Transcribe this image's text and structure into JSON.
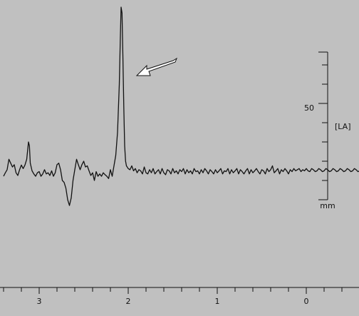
{
  "chart_data": {
    "type": "line",
    "title": "",
    "xlabel": "",
    "ylabel": "",
    "x_ticks": [
      3,
      2,
      1,
      0
    ],
    "x_tick_labels": [
      "3",
      "2",
      "1",
      "0"
    ],
    "x_range": [
      3.4,
      -0.6
    ],
    "y_scale": {
      "label": "[LA]",
      "tick_label": "50",
      "tick_value": 50,
      "unit": "mm",
      "range": [
        0,
        100
      ]
    },
    "series": [
      {
        "name": "",
        "points": [
          [
            3.4,
            12.2
          ],
          [
            3.38,
            14.0
          ],
          [
            3.36,
            15.6
          ],
          [
            3.34,
            21.0
          ],
          [
            3.32,
            19.0
          ],
          [
            3.3,
            17.0
          ],
          [
            3.28,
            18.2
          ],
          [
            3.26,
            14.0
          ],
          [
            3.24,
            12.6
          ],
          [
            3.22,
            15.6
          ],
          [
            3.2,
            18.0
          ],
          [
            3.18,
            16.2
          ],
          [
            3.16,
            18.0
          ],
          [
            3.14,
            21.0
          ],
          [
            3.12,
            30.0
          ],
          [
            3.11,
            28.0
          ],
          [
            3.1,
            19.0
          ],
          [
            3.08,
            15.0
          ],
          [
            3.06,
            13.4
          ],
          [
            3.04,
            12.2
          ],
          [
            3.02,
            14.0
          ],
          [
            3.0,
            14.6
          ],
          [
            2.98,
            12.2
          ],
          [
            2.96,
            13.4
          ],
          [
            2.94,
            15.6
          ],
          [
            2.92,
            13.4
          ],
          [
            2.9,
            14.0
          ],
          [
            2.88,
            12.6
          ],
          [
            2.86,
            15.0
          ],
          [
            2.84,
            12.2
          ],
          [
            2.82,
            14.0
          ],
          [
            2.8,
            18.2
          ],
          [
            2.78,
            19.0
          ],
          [
            2.76,
            15.6
          ],
          [
            2.74,
            10.0
          ],
          [
            2.72,
            9.0
          ],
          [
            2.7,
            6.0
          ],
          [
            2.68,
            0.0
          ],
          [
            2.66,
            -3.0
          ],
          [
            2.64,
            1.0
          ],
          [
            2.62,
            10.0
          ],
          [
            2.6,
            15.6
          ],
          [
            2.58,
            21.0
          ],
          [
            2.56,
            18.2
          ],
          [
            2.54,
            15.6
          ],
          [
            2.52,
            18.2
          ],
          [
            2.5,
            20.0
          ],
          [
            2.48,
            17.0
          ],
          [
            2.46,
            17.6
          ],
          [
            2.44,
            15.0
          ],
          [
            2.42,
            12.6
          ],
          [
            2.4,
            14.0
          ],
          [
            2.38,
            10.0
          ],
          [
            2.36,
            14.6
          ],
          [
            2.34,
            12.2
          ],
          [
            2.32,
            13.4
          ],
          [
            2.3,
            12.2
          ],
          [
            2.28,
            14.0
          ],
          [
            2.26,
            13.0
          ],
          [
            2.24,
            12.2
          ],
          [
            2.22,
            11.0
          ],
          [
            2.2,
            15.6
          ],
          [
            2.18,
            12.2
          ],
          [
            2.16,
            17.6
          ],
          [
            2.14,
            23.0
          ],
          [
            2.12,
            35.0
          ],
          [
            2.1,
            60.0
          ],
          [
            2.09,
            82.0
          ],
          [
            2.08,
            100.0
          ],
          [
            2.07,
            97.0
          ],
          [
            2.06,
            75.0
          ],
          [
            2.05,
            48.0
          ],
          [
            2.04,
            28.0
          ],
          [
            2.03,
            20.0
          ],
          [
            2.02,
            17.6
          ],
          [
            2.0,
            16.2
          ],
          [
            1.98,
            15.6
          ],
          [
            1.96,
            17.6
          ],
          [
            1.94,
            15.0
          ],
          [
            1.92,
            16.2
          ],
          [
            1.9,
            14.0
          ],
          [
            1.88,
            15.6
          ],
          [
            1.86,
            15.0
          ],
          [
            1.84,
            13.4
          ],
          [
            1.82,
            17.0
          ],
          [
            1.8,
            14.0
          ],
          [
            1.78,
            13.4
          ],
          [
            1.76,
            15.6
          ],
          [
            1.74,
            14.0
          ],
          [
            1.72,
            16.2
          ],
          [
            1.7,
            13.4
          ],
          [
            1.68,
            14.6
          ],
          [
            1.66,
            15.6
          ],
          [
            1.64,
            13.4
          ],
          [
            1.62,
            16.2
          ],
          [
            1.6,
            14.0
          ],
          [
            1.58,
            13.0
          ],
          [
            1.56,
            15.6
          ],
          [
            1.54,
            15.0
          ],
          [
            1.52,
            13.4
          ],
          [
            1.5,
            16.2
          ],
          [
            1.48,
            14.0
          ],
          [
            1.46,
            15.0
          ],
          [
            1.44,
            13.4
          ],
          [
            1.42,
            15.6
          ],
          [
            1.4,
            14.6
          ],
          [
            1.38,
            16.2
          ],
          [
            1.36,
            13.4
          ],
          [
            1.34,
            15.6
          ],
          [
            1.32,
            14.0
          ],
          [
            1.3,
            15.0
          ],
          [
            1.28,
            13.4
          ],
          [
            1.26,
            16.2
          ],
          [
            1.24,
            14.6
          ],
          [
            1.22,
            15.0
          ],
          [
            1.2,
            13.4
          ],
          [
            1.18,
            15.6
          ],
          [
            1.16,
            14.0
          ],
          [
            1.14,
            16.2
          ],
          [
            1.12,
            15.0
          ],
          [
            1.1,
            13.4
          ],
          [
            1.08,
            15.6
          ],
          [
            1.06,
            14.6
          ],
          [
            1.04,
            13.4
          ],
          [
            1.02,
            15.6
          ],
          [
            1.0,
            14.0
          ],
          [
            0.98,
            15.0
          ],
          [
            0.96,
            16.2
          ],
          [
            0.94,
            13.4
          ],
          [
            0.92,
            15.0
          ],
          [
            0.9,
            14.6
          ],
          [
            0.88,
            16.2
          ],
          [
            0.86,
            13.4
          ],
          [
            0.84,
            15.6
          ],
          [
            0.82,
            14.0
          ],
          [
            0.8,
            15.0
          ],
          [
            0.78,
            16.2
          ],
          [
            0.76,
            13.4
          ],
          [
            0.74,
            15.6
          ],
          [
            0.72,
            14.6
          ],
          [
            0.7,
            13.4
          ],
          [
            0.68,
            15.0
          ],
          [
            0.66,
            16.2
          ],
          [
            0.64,
            13.4
          ],
          [
            0.62,
            15.6
          ],
          [
            0.6,
            14.0
          ],
          [
            0.58,
            15.0
          ],
          [
            0.56,
            16.2
          ],
          [
            0.54,
            14.6
          ],
          [
            0.52,
            13.4
          ],
          [
            0.5,
            15.6
          ],
          [
            0.48,
            15.0
          ],
          [
            0.46,
            13.4
          ],
          [
            0.44,
            16.2
          ],
          [
            0.42,
            14.6
          ],
          [
            0.4,
            15.6
          ],
          [
            0.38,
            17.6
          ],
          [
            0.36,
            14.0
          ],
          [
            0.34,
            15.0
          ],
          [
            0.32,
            16.2
          ],
          [
            0.3,
            13.4
          ],
          [
            0.28,
            15.6
          ],
          [
            0.26,
            14.6
          ],
          [
            0.24,
            16.2
          ],
          [
            0.22,
            15.0
          ],
          [
            0.2,
            13.4
          ],
          [
            0.18,
            15.6
          ],
          [
            0.16,
            14.6
          ],
          [
            0.14,
            16.2
          ],
          [
            0.12,
            15.0
          ],
          [
            0.1,
            15.6
          ],
          [
            0.08,
            16.2
          ],
          [
            0.06,
            14.6
          ],
          [
            0.04,
            15.6
          ],
          [
            0.02,
            15.0
          ],
          [
            0.0,
            16.2
          ],
          [
            -0.02,
            15.0
          ],
          [
            -0.04,
            14.6
          ],
          [
            -0.06,
            16.2
          ],
          [
            -0.08,
            15.6
          ],
          [
            -0.1,
            14.6
          ],
          [
            -0.12,
            15.0
          ],
          [
            -0.14,
            16.2
          ],
          [
            -0.16,
            15.6
          ],
          [
            -0.18,
            14.6
          ],
          [
            -0.2,
            15.0
          ],
          [
            -0.22,
            16.2
          ],
          [
            -0.24,
            15.6
          ],
          [
            -0.26,
            14.6
          ],
          [
            -0.28,
            15.0
          ],
          [
            -0.3,
            16.2
          ],
          [
            -0.32,
            15.6
          ],
          [
            -0.34,
            14.6
          ],
          [
            -0.36,
            15.0
          ],
          [
            -0.38,
            16.2
          ],
          [
            -0.4,
            15.6
          ],
          [
            -0.42,
            14.6
          ],
          [
            -0.44,
            15.0
          ],
          [
            -0.46,
            16.2
          ],
          [
            -0.48,
            15.6
          ],
          [
            -0.5,
            14.6
          ],
          [
            -0.52,
            15.0
          ],
          [
            -0.54,
            16.2
          ],
          [
            -0.56,
            15.6
          ],
          [
            -0.58,
            14.6
          ],
          [
            -0.6,
            15.0
          ]
        ],
        "color": "#111111"
      }
    ],
    "annotations": [
      {
        "type": "arrow",
        "points_to": [
          2.07,
          85.0
        ]
      }
    ],
    "grid": false,
    "legend": "none",
    "background": "#c0c0c0"
  }
}
